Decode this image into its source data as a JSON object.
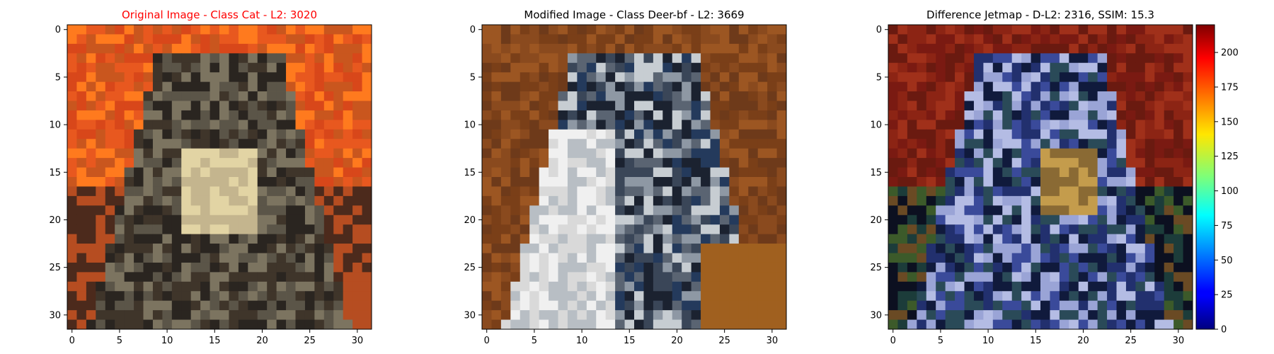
{
  "chart_data": [
    {
      "type": "heatmap",
      "title": "Original Image - Class Cat - L2: 3020",
      "title_color": "#ff0000",
      "xlim": [
        -0.5,
        31.5
      ],
      "ylim": [
        31.5,
        -0.5
      ],
      "xticks": [
        0,
        5,
        10,
        15,
        20,
        25,
        30
      ],
      "yticks": [
        0,
        5,
        10,
        15,
        20,
        25,
        30
      ],
      "image": "32x32 RGB photo of a tabby cat on orange background",
      "palette": [
        "#e8581f",
        "#d8471a",
        "#ff7a1e",
        "#c9561e",
        "#5b5548",
        "#7c7460",
        "#c4b58e",
        "#e2d4a4",
        "#2a2520",
        "#3f352a",
        "#8a7a5c",
        "#6d5a46",
        "#4c2a1c",
        "#b64d21",
        "#d2702a",
        "#1c1612"
      ]
    },
    {
      "type": "heatmap",
      "title": "Modified Image - Class Deer-bf - L2: 3669",
      "title_color": "#000000",
      "xlim": [
        -0.5,
        31.5
      ],
      "ylim": [
        31.5,
        -0.5
      ],
      "xticks": [
        0,
        5,
        10,
        15,
        20,
        25,
        30
      ],
      "yticks": [
        0,
        5,
        10,
        15,
        20,
        25,
        30
      ],
      "image": "32x32 RGB image of a dog with dark background, white chest",
      "palette": [
        "#8a4a1e",
        "#7a3f18",
        "#9c5622",
        "#6e3a1a",
        "#f0f0f0",
        "#d9d9d9",
        "#b8bec4",
        "#1b2230",
        "#243a5c",
        "#3a4658",
        "#5a6472",
        "#8e98a4",
        "#c7cdd2",
        "#a0601f",
        "#4a2c1c",
        "#2c2a2a"
      ]
    },
    {
      "type": "heatmap",
      "title": "Difference Jetmap - D-L2: 2316, SSIM: 15.3",
      "title_color": "#000000",
      "xlim": [
        -0.5,
        31.5
      ],
      "ylim": [
        31.5,
        -0.5
      ],
      "xticks": [
        0,
        5,
        10,
        15,
        20,
        25,
        30
      ],
      "yticks": [
        0,
        5,
        10,
        15,
        20,
        25,
        30
      ],
      "image": "32x32 blended difference visualization",
      "palette": [
        "#7a1a12",
        "#8c2414",
        "#6a1a10",
        "#a0301a",
        "#9aa4d6",
        "#b4bce4",
        "#3a4a9a",
        "#22306e",
        "#101a3c",
        "#2a4a58",
        "#c49c4c",
        "#8a6a34",
        "#3c5a2a",
        "#1c3c3a",
        "#6a4a24",
        "#0c1020"
      ],
      "colorbar": {
        "colormap": "jet",
        "range": [
          0,
          220
        ],
        "ticks": [
          0,
          25,
          50,
          75,
          100,
          125,
          150,
          175,
          200
        ]
      }
    }
  ]
}
